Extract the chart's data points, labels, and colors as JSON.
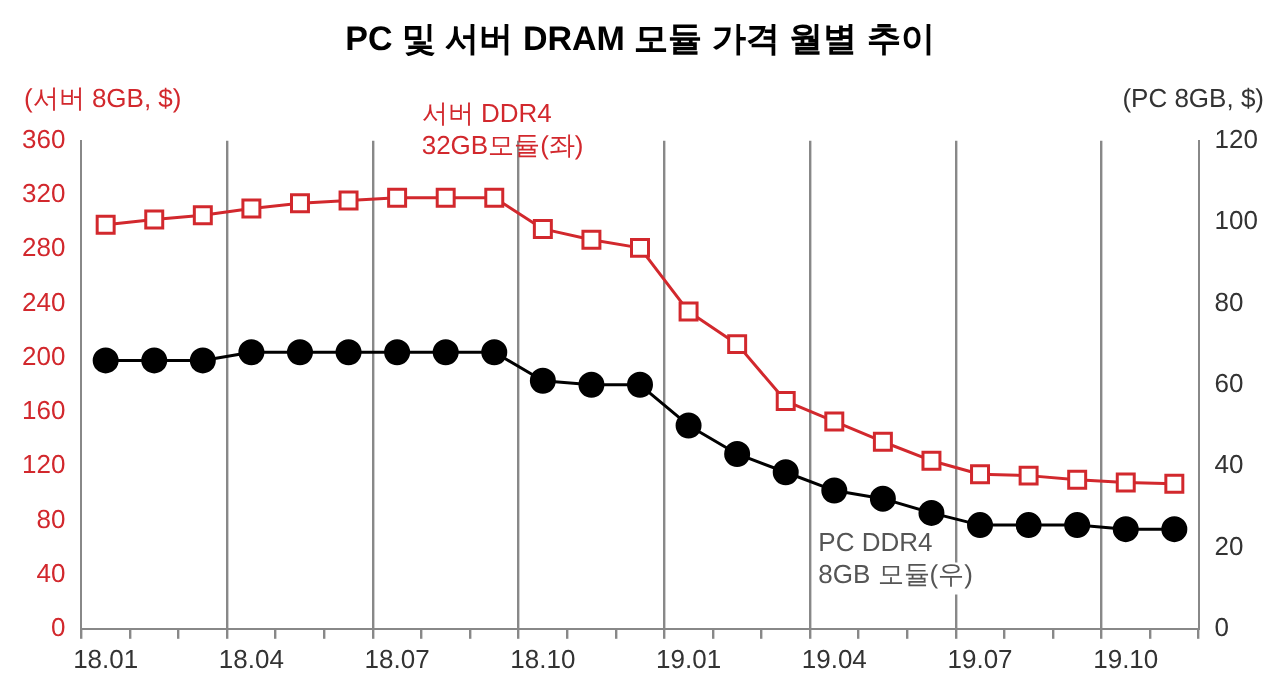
{
  "chart_data": {
    "type": "line",
    "title": "PC 및 서버 DRAM 모듈 가격 월별 추이",
    "ylabel": "(서버 8GB, $)",
    "y2label": "(PC 8GB, $)",
    "categories": [
      "18.01",
      null,
      null,
      "18.04",
      null,
      null,
      "18.07",
      null,
      null,
      "18.10",
      null,
      null,
      "19.01",
      null,
      null,
      "19.04",
      null,
      null,
      "19.07",
      null,
      null,
      "19.10",
      null
    ],
    "series": [
      {
        "name": "서버 DDR4\n32GB모듈(좌)",
        "color": "#d2282d",
        "marker": "square",
        "values": [
          298,
          302,
          305,
          310,
          314,
          316,
          318,
          318,
          318,
          295,
          287,
          281,
          234,
          210,
          168,
          153,
          138,
          124,
          114,
          113,
          110,
          108,
          107
        ]
      },
      {
        "name": "PC DDR4\n8GB 모듈(우)",
        "color": "#000000",
        "marker": "circle",
        "axis": "y2",
        "values": [
          66,
          66,
          66,
          68,
          68,
          68,
          68,
          68,
          68,
          61,
          60,
          60,
          50,
          43,
          38.5,
          34,
          32,
          28.5,
          25.5,
          25.5,
          25.5,
          24.5,
          24.5
        ]
      }
    ],
    "ylim": [
      0,
      360
    ],
    "yticks": [
      0,
      40,
      80,
      120,
      160,
      200,
      240,
      280,
      320,
      360
    ],
    "y2lim": [
      0,
      120
    ],
    "y2ticks": [
      0,
      20,
      40,
      60,
      80,
      100,
      120
    ],
    "grid": "x",
    "legend": false,
    "line_style": "solid"
  }
}
